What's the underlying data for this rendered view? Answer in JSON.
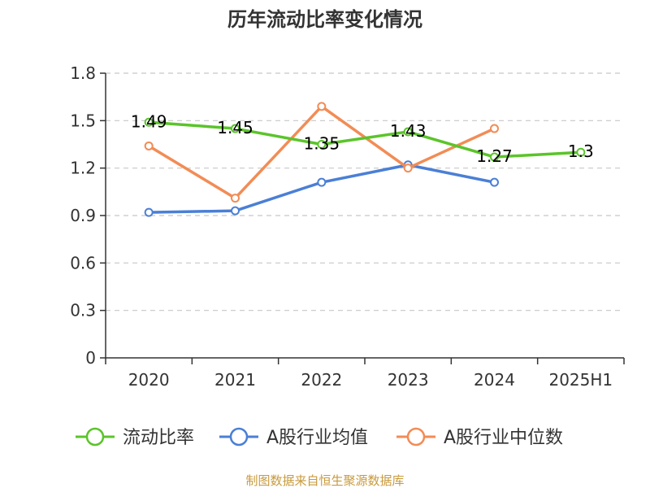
{
  "chart_data": {
    "type": "line",
    "title": "历年流动比率变化情况",
    "categories": [
      "2020",
      "2021",
      "2022",
      "2023",
      "2024",
      "2025H1"
    ],
    "ylim": [
      0,
      1.8
    ],
    "yticks": [
      "0",
      "0.3",
      "0.6",
      "0.9",
      "1.2",
      "1.5",
      "1.8"
    ],
    "grid": true,
    "legend_position": "bottom",
    "series": [
      {
        "name": "流动比率",
        "color": "#5bc42a",
        "values": [
          1.49,
          1.45,
          1.35,
          1.43,
          1.27,
          1.3
        ],
        "labels": [
          "1.49",
          "1.45",
          "1.35",
          "1.43",
          "1.27",
          "1.3"
        ]
      },
      {
        "name": "A股行业均值",
        "color": "#4a7fd6",
        "values": [
          0.92,
          0.93,
          1.11,
          1.22,
          1.11,
          null
        ]
      },
      {
        "name": "A股行业中位数",
        "color": "#f28c55",
        "values": [
          1.34,
          1.01,
          1.59,
          1.2,
          1.45,
          null
        ]
      }
    ]
  },
  "source_text": "制图数据来自恒生聚源数据库",
  "source_color": "#c89a3c"
}
